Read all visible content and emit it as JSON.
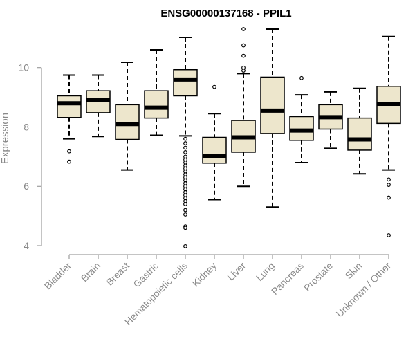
{
  "chart_data": {
    "type": "boxplot",
    "title": "ENSG00000137168 - PPIL1",
    "xlabel": "",
    "ylabel": "Expression",
    "ylim": [
      4,
      11.3
    ],
    "yticks": [
      4,
      6,
      8,
      10
    ],
    "categories": [
      "Bladder",
      "Brain",
      "Breast",
      "Gastric",
      "Hematopoietic cells",
      "Kidney",
      "Liver",
      "Lung",
      "Pancreas",
      "Prostate",
      "Skin",
      "Unknown / Other"
    ],
    "box_color": "#ede6cc",
    "series": [
      {
        "name": "Bladder",
        "whisker_low": 7.6,
        "q1": 8.32,
        "median": 8.8,
        "q3": 9.05,
        "whisker_high": 9.75,
        "outliers": [
          7.18,
          6.83
        ]
      },
      {
        "name": "Brain",
        "whisker_low": 7.68,
        "q1": 8.48,
        "median": 8.9,
        "q3": 9.22,
        "whisker_high": 9.75,
        "outliers": []
      },
      {
        "name": "Breast",
        "whisker_low": 6.55,
        "q1": 7.58,
        "median": 8.1,
        "q3": 8.75,
        "whisker_high": 10.18,
        "outliers": []
      },
      {
        "name": "Gastric",
        "whisker_low": 7.72,
        "q1": 8.3,
        "median": 8.65,
        "q3": 9.22,
        "whisker_high": 10.6,
        "outliers": []
      },
      {
        "name": "Hematopoietic cells",
        "whisker_low": 7.7,
        "q1": 9.05,
        "median": 9.6,
        "q3": 9.93,
        "whisker_high": 11.02,
        "outliers": [
          7.6,
          7.45,
          7.3,
          7.15,
          7.0,
          6.9,
          6.8,
          6.7,
          6.6,
          6.5,
          6.4,
          6.3,
          6.2,
          6.1,
          6.0,
          5.9,
          5.8,
          5.7,
          5.6,
          5.5,
          5.4,
          5.2,
          5.05,
          4.65,
          4.6,
          3.98
        ]
      },
      {
        "name": "Kidney",
        "whisker_low": 5.55,
        "q1": 6.78,
        "median": 7.03,
        "q3": 7.65,
        "whisker_high": 8.45,
        "outliers": [
          9.35
        ]
      },
      {
        "name": "Liver",
        "whisker_low": 6.0,
        "q1": 7.15,
        "median": 7.65,
        "q3": 8.22,
        "whisker_high": 9.8,
        "outliers": [
          9.9,
          10.0,
          10.4,
          10.75,
          11.3
        ]
      },
      {
        "name": "Lung",
        "whisker_low": 5.3,
        "q1": 7.78,
        "median": 8.55,
        "q3": 9.68,
        "whisker_high": 11.3,
        "outliers": []
      },
      {
        "name": "Pancreas",
        "whisker_low": 6.8,
        "q1": 7.55,
        "median": 7.88,
        "q3": 8.35,
        "whisker_high": 9.08,
        "outliers": [
          9.65
        ]
      },
      {
        "name": "Prostate",
        "whisker_low": 7.28,
        "q1": 7.93,
        "median": 8.33,
        "q3": 8.75,
        "whisker_high": 9.18,
        "outliers": []
      },
      {
        "name": "Skin",
        "whisker_low": 6.42,
        "q1": 7.22,
        "median": 7.58,
        "q3": 8.3,
        "whisker_high": 9.3,
        "outliers": []
      },
      {
        "name": "Unknown / Other",
        "whisker_low": 6.55,
        "q1": 8.12,
        "median": 8.78,
        "q3": 9.37,
        "whisker_high": 11.05,
        "outliers": [
          6.23,
          6.05,
          5.62,
          4.35
        ]
      }
    ]
  }
}
